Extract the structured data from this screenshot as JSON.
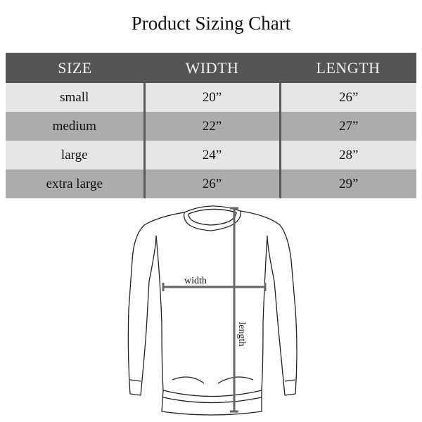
{
  "title": "Product Sizing Chart",
  "table": {
    "headers": [
      "SIZE",
      "WIDTH",
      "LENGTH"
    ],
    "rows": [
      [
        "small",
        "20”",
        "26”"
      ],
      [
        "medium",
        "22”",
        "27”"
      ],
      [
        "large",
        "24”",
        "28”"
      ],
      [
        "extra large",
        "26”",
        "29”"
      ]
    ]
  },
  "diagram": {
    "width_label": "width",
    "length_label": "length"
  },
  "colors": {
    "header_bg": "#555555",
    "row_light": "#e6e6e6",
    "row_dark": "#acacac",
    "measure_line": "#666666"
  }
}
